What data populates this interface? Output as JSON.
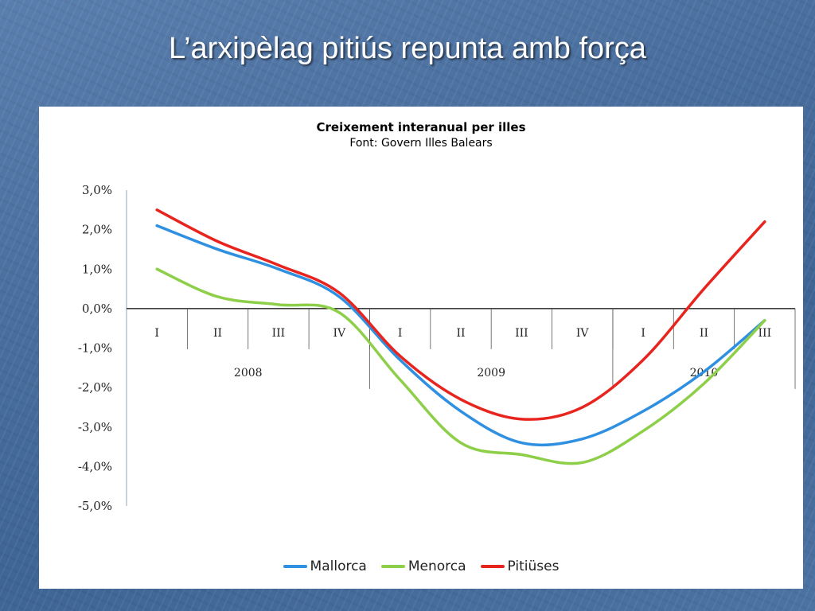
{
  "slide": {
    "title": "L’arxipèlag pitiús repunta amb força"
  },
  "chart_data": {
    "type": "line",
    "title": "Creixement interanual per illes",
    "subtitle": "Font: Govern Illes Balears",
    "categories": [
      "I",
      "II",
      "III",
      "IV",
      "I",
      "II",
      "III",
      "IV",
      "I",
      "II",
      "III"
    ],
    "groups": [
      {
        "label": "2008",
        "count": 4
      },
      {
        "label": "2009",
        "count": 4
      },
      {
        "label": "2010",
        "count": 3
      }
    ],
    "y_ticks": [
      "3,0%",
      "2,0%",
      "1,0%",
      "0,0%",
      "-1,0%",
      "-2,0%",
      "-3,0%",
      "-4,0%",
      "-5,0%"
    ],
    "ylim": [
      -5.0,
      3.0
    ],
    "series": [
      {
        "name": "Mallorca",
        "color": "#2f8fe0",
        "values": [
          2.1,
          1.5,
          1.0,
          0.3,
          -1.3,
          -2.6,
          -3.4,
          -3.3,
          -2.6,
          -1.6,
          -0.3
        ]
      },
      {
        "name": "Menorca",
        "color": "#8ecf4a",
        "values": [
          1.0,
          0.3,
          0.1,
          -0.1,
          -1.8,
          -3.4,
          -3.7,
          -3.9,
          -3.1,
          -1.9,
          -0.3
        ]
      },
      {
        "name": "Pitiüses",
        "color": "#e8241f",
        "values": [
          2.5,
          1.7,
          1.1,
          0.4,
          -1.2,
          -2.3,
          -2.8,
          -2.5,
          -1.3,
          0.5,
          2.2
        ]
      }
    ],
    "legend_position": "bottom",
    "grid": false
  }
}
